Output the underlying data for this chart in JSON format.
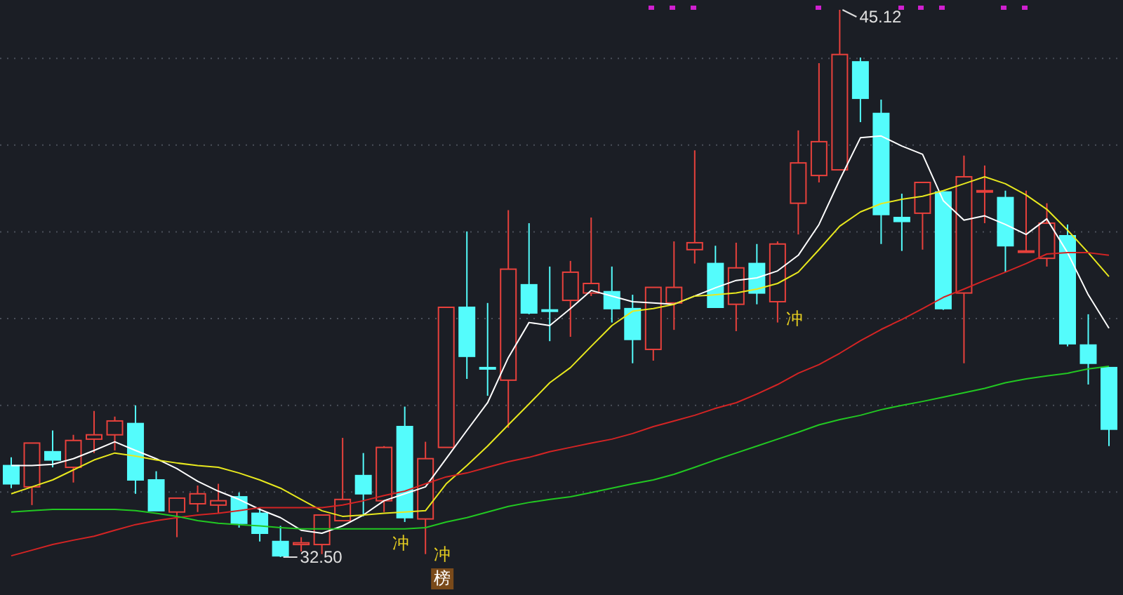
{
  "chart_data": {
    "type": "candlestick",
    "categories": [
      null,
      null,
      null,
      null,
      null,
      null,
      null,
      null,
      null,
      null,
      null,
      null,
      null,
      null,
      null,
      null,
      null,
      null,
      null,
      null,
      null,
      null,
      null,
      null,
      null,
      null,
      null,
      null,
      null,
      null,
      null,
      null,
      null,
      null,
      null,
      null,
      null,
      null,
      null,
      null,
      null,
      null,
      null,
      null,
      null,
      null,
      null,
      null,
      null,
      null,
      null,
      null,
      null,
      null
    ],
    "ohlc": [
      [
        34.61,
        34.8,
        34.09,
        34.19
      ],
      [
        34.12,
        35.13,
        33.7,
        35.13
      ],
      [
        34.93,
        35.42,
        34.57,
        34.74
      ],
      [
        34.57,
        35.32,
        34.22,
        35.19
      ],
      [
        35.22,
        35.87,
        34.9,
        35.32
      ],
      [
        35.32,
        35.74,
        34.96,
        35.64
      ],
      [
        35.58,
        36.0,
        33.96,
        34.28
      ],
      [
        34.28,
        34.48,
        33.57,
        33.57
      ],
      [
        33.54,
        33.86,
        32.96,
        33.86
      ],
      [
        33.73,
        34.15,
        33.54,
        33.96
      ],
      [
        33.7,
        34.19,
        33.51,
        33.8
      ],
      [
        33.89,
        33.99,
        33.18,
        33.28
      ],
      [
        33.51,
        33.64,
        32.86,
        33.05
      ],
      [
        32.86,
        33.22,
        32.5,
        32.53
      ],
      [
        32.79,
        32.96,
        32.63,
        32.83
      ],
      [
        32.79,
        33.47,
        32.57,
        33.47
      ],
      [
        33.34,
        35.25,
        33.34,
        33.83
      ],
      [
        34.38,
        34.9,
        33.44,
        33.96
      ],
      [
        33.8,
        35.06,
        33.54,
        35.03
      ],
      [
        35.51,
        35.97,
        33.31,
        33.41
      ],
      [
        33.38,
        35.16,
        32.57,
        34.77
      ],
      [
        35.03,
        38.26,
        35.03,
        38.26
      ],
      [
        38.26,
        40.01,
        36.61,
        37.13
      ],
      [
        36.87,
        38.36,
        36.22,
        36.87
      ],
      [
        36.58,
        40.5,
        35.48,
        39.14
      ],
      [
        38.78,
        40.2,
        38.1,
        38.13
      ],
      [
        38.2,
        39.2,
        37.48,
        38.2
      ],
      [
        38.42,
        39.33,
        37.58,
        39.07
      ],
      [
        38.59,
        40.33,
        38.52,
        38.81
      ],
      [
        38.62,
        39.2,
        37.91,
        38.23
      ],
      [
        38.23,
        38.55,
        36.97,
        37.52
      ],
      [
        37.29,
        38.72,
        37.03,
        38.72
      ],
      [
        38.36,
        39.78,
        37.74,
        38.72
      ],
      [
        39.59,
        41.88,
        39.27,
        39.75
      ],
      [
        39.27,
        39.68,
        38.26,
        38.26
      ],
      [
        38.33,
        39.75,
        37.71,
        39.17
      ],
      [
        39.27,
        39.72,
        38.33,
        38.59
      ],
      [
        38.39,
        39.78,
        37.91,
        39.72
      ],
      [
        40.66,
        42.34,
        39.94,
        41.59
      ],
      [
        41.3,
        43.89,
        41.14,
        42.08
      ],
      [
        41.43,
        45.12,
        41.43,
        44.09
      ],
      [
        43.92,
        44.02,
        42.53,
        43.08
      ],
      [
        42.73,
        43.05,
        39.72,
        40.4
      ],
      [
        40.33,
        40.88,
        39.56,
        40.24
      ],
      [
        40.43,
        41.14,
        39.59,
        41.14
      ],
      [
        40.92,
        40.92,
        38.2,
        38.23
      ],
      [
        38.59,
        41.76,
        36.97,
        41.27
      ],
      [
        40.95,
        41.53,
        40.2,
        40.95
      ],
      [
        40.79,
        40.95,
        39.07,
        39.68
      ],
      [
        39.56,
        40.95,
        39.52,
        39.56
      ],
      [
        39.39,
        40.66,
        39.2,
        40.2
      ],
      [
        39.91,
        40.17,
        37.36,
        37.42
      ],
      [
        37.39,
        38.1,
        36.48,
        36.97
      ],
      [
        36.87,
        36.87,
        35.06,
        35.45
      ]
    ],
    "colors": [
      "#54fcfc",
      "#e8413c",
      "#54fcfc",
      "#e8413c",
      "#e8413c",
      "#e8413c",
      "#54fcfc",
      "#54fcfc",
      "#e8413c",
      "#e8413c",
      "#e8413c",
      "#54fcfc",
      "#54fcfc",
      "#54fcfc",
      "#e8413c",
      "#e8413c",
      "#e8413c",
      "#54fcfc",
      "#e8413c",
      "#54fcfc",
      "#e8413c",
      "#e8413c",
      "#54fcfc",
      "#54fcfc",
      "#e8413c",
      "#54fcfc",
      "#54fcfc",
      "#e8413c",
      "#e8413c",
      "#54fcfc",
      "#54fcfc",
      "#e8413c",
      "#e8413c",
      "#e8413c",
      "#54fcfc",
      "#e8413c",
      "#54fcfc",
      "#e8413c",
      "#e8413c",
      "#e8413c",
      "#e8413c",
      "#54fcfc",
      "#54fcfc",
      "#54fcfc",
      "#e8413c",
      "#54fcfc",
      "#e8413c",
      "#e8413c",
      "#54fcfc",
      "#e8413c",
      "#e8413c",
      "#54fcfc",
      "#54fcfc",
      "#54fcfc"
    ],
    "series": [
      {
        "type": "line",
        "color": "#ffffff",
        "values": [
          34.61,
          34.61,
          34.64,
          34.77,
          34.96,
          35.16,
          34.96,
          34.77,
          34.54,
          34.25,
          34.02,
          33.83,
          33.6,
          33.41,
          33.12,
          33.05,
          33.22,
          33.47,
          33.8,
          33.96,
          34.12,
          34.77,
          35.42,
          36.06,
          37.1,
          37.91,
          37.84,
          38.23,
          38.65,
          38.52,
          38.39,
          38.36,
          38.33,
          38.52,
          38.71,
          38.88,
          38.94,
          39.1,
          39.46,
          40.17,
          41.2,
          42.17,
          42.21,
          41.98,
          41.79,
          40.72,
          40.27,
          40.37,
          40.17,
          39.94,
          40.3,
          39.52,
          38.55,
          37.78
        ]
      },
      {
        "type": "line",
        "color": "#e8e81e",
        "values": [
          33.96,
          34.12,
          34.28,
          34.51,
          34.74,
          34.9,
          34.83,
          34.74,
          34.67,
          34.61,
          34.57,
          34.44,
          34.28,
          34.09,
          33.83,
          33.57,
          33.44,
          33.47,
          33.51,
          33.54,
          33.57,
          34.19,
          34.61,
          35.06,
          35.55,
          36.03,
          36.52,
          36.87,
          37.36,
          37.84,
          38.17,
          38.23,
          38.33,
          38.52,
          38.55,
          38.59,
          38.68,
          38.81,
          39.07,
          39.59,
          40.13,
          40.46,
          40.65,
          40.75,
          40.82,
          40.95,
          41.11,
          41.27,
          41.11,
          40.85,
          40.52,
          40.04,
          39.52,
          38.97
        ]
      },
      {
        "type": "line",
        "color": "#d42424",
        "values": [
          32.53,
          32.66,
          32.79,
          32.89,
          32.98,
          33.12,
          33.25,
          33.34,
          33.41,
          33.47,
          33.51,
          33.57,
          33.64,
          33.64,
          33.64,
          33.64,
          33.7,
          33.8,
          33.92,
          34.02,
          34.19,
          34.35,
          34.44,
          34.57,
          34.7,
          34.8,
          34.93,
          35.03,
          35.13,
          35.22,
          35.35,
          35.51,
          35.64,
          35.77,
          35.93,
          36.06,
          36.26,
          36.48,
          36.74,
          36.94,
          37.2,
          37.49,
          37.75,
          37.98,
          38.23,
          38.49,
          38.68,
          38.88,
          39.07,
          39.27,
          39.49,
          39.52,
          39.52,
          39.46
        ]
      },
      {
        "type": "line",
        "color": "#22c822",
        "values": [
          33.54,
          33.57,
          33.6,
          33.6,
          33.6,
          33.6,
          33.57,
          33.51,
          33.44,
          33.34,
          33.28,
          33.25,
          33.22,
          33.18,
          33.15,
          33.15,
          33.15,
          33.15,
          33.15,
          33.15,
          33.18,
          33.31,
          33.41,
          33.54,
          33.67,
          33.76,
          33.83,
          33.89,
          33.99,
          34.09,
          34.19,
          34.28,
          34.41,
          34.57,
          34.74,
          34.9,
          35.06,
          35.22,
          35.38,
          35.55,
          35.67,
          35.77,
          35.9,
          36.0,
          36.09,
          36.19,
          36.29,
          36.39,
          36.52,
          36.61,
          36.68,
          36.74,
          36.84,
          36.9
        ]
      }
    ],
    "yticks": [
      {
        "value": 44,
        "label": null
      },
      {
        "value": 42,
        "label": null
      },
      {
        "value": 40,
        "label": null
      },
      {
        "value": 38,
        "label": null
      },
      {
        "value": 36,
        "label": null
      },
      {
        "value": 34,
        "label": null
      }
    ],
    "grid": "y",
    "annotations": [
      "45.12",
      "32.50",
      "冲",
      "冲",
      "冲",
      "榜"
    ]
  }
}
